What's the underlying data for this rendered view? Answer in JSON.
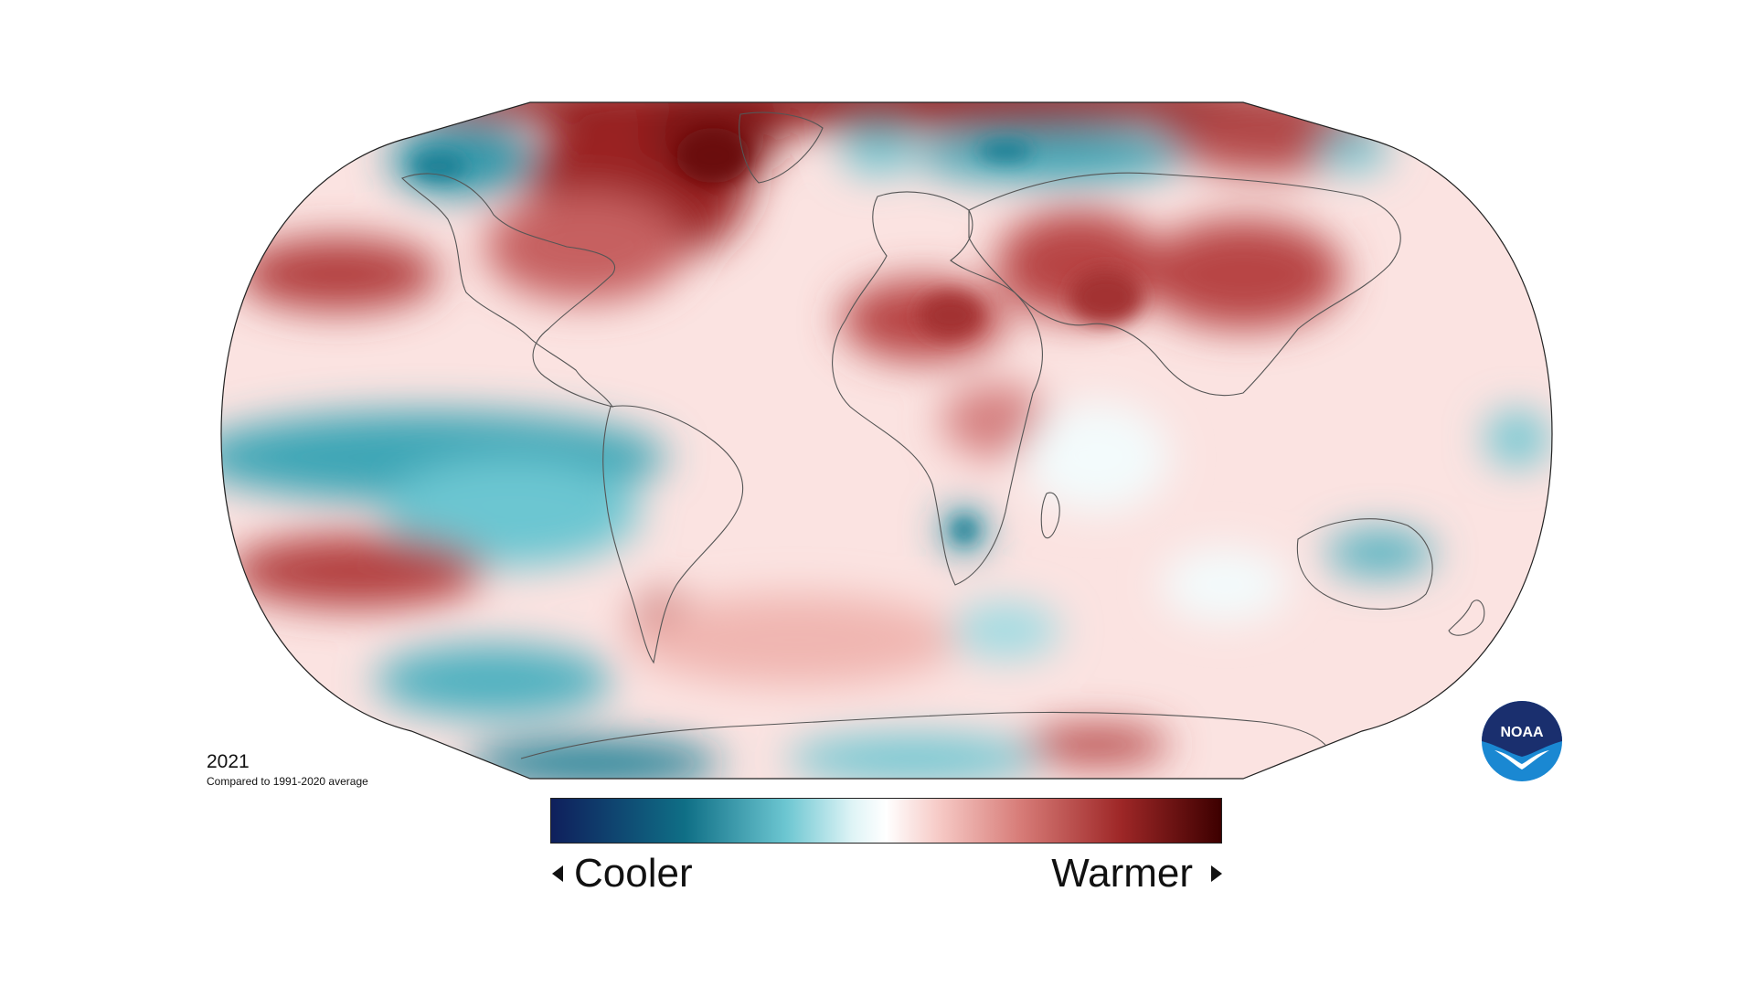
{
  "map": {
    "year": "2021",
    "comparison": "Compared to 1991-2020 average",
    "projection": "robinson",
    "anomaly_regions": [
      {
        "name": "arctic-canada",
        "direction": "warmer",
        "intensity": "strong"
      },
      {
        "name": "greenland-north",
        "direction": "warmer",
        "intensity": "strong"
      },
      {
        "name": "alaska",
        "direction": "cooler",
        "intensity": "moderate"
      },
      {
        "name": "north-pacific",
        "direction": "warmer",
        "intensity": "moderate"
      },
      {
        "name": "tropical-pacific",
        "direction": "cooler",
        "intensity": "moderate"
      },
      {
        "name": "south-pacific",
        "direction": "warmer",
        "intensity": "moderate"
      },
      {
        "name": "north-africa",
        "direction": "warmer",
        "intensity": "moderate"
      },
      {
        "name": "middle-east",
        "direction": "warmer",
        "intensity": "moderate"
      },
      {
        "name": "siberia",
        "direction": "cooler",
        "intensity": "moderate"
      },
      {
        "name": "east-asia",
        "direction": "warmer",
        "intensity": "moderate"
      },
      {
        "name": "southern-africa",
        "direction": "cooler",
        "intensity": "moderate"
      },
      {
        "name": "australia",
        "direction": "cooler",
        "intensity": "light"
      },
      {
        "name": "antarctica-west",
        "direction": "cooler",
        "intensity": "moderate"
      },
      {
        "name": "antarctica-east",
        "direction": "warmer",
        "intensity": "moderate"
      }
    ]
  },
  "legend": {
    "cool_label": "Cooler",
    "warm_label": "Warmer",
    "colors": [
      "#0f1f5c",
      "#0f7a8f",
      "#aee4ea",
      "#ffffff",
      "#f2aaa6",
      "#b23a3a",
      "#3d0000"
    ]
  },
  "logo": {
    "text": "NOAA",
    "colors": [
      "#1a2f6e",
      "#1a88d2"
    ]
  }
}
